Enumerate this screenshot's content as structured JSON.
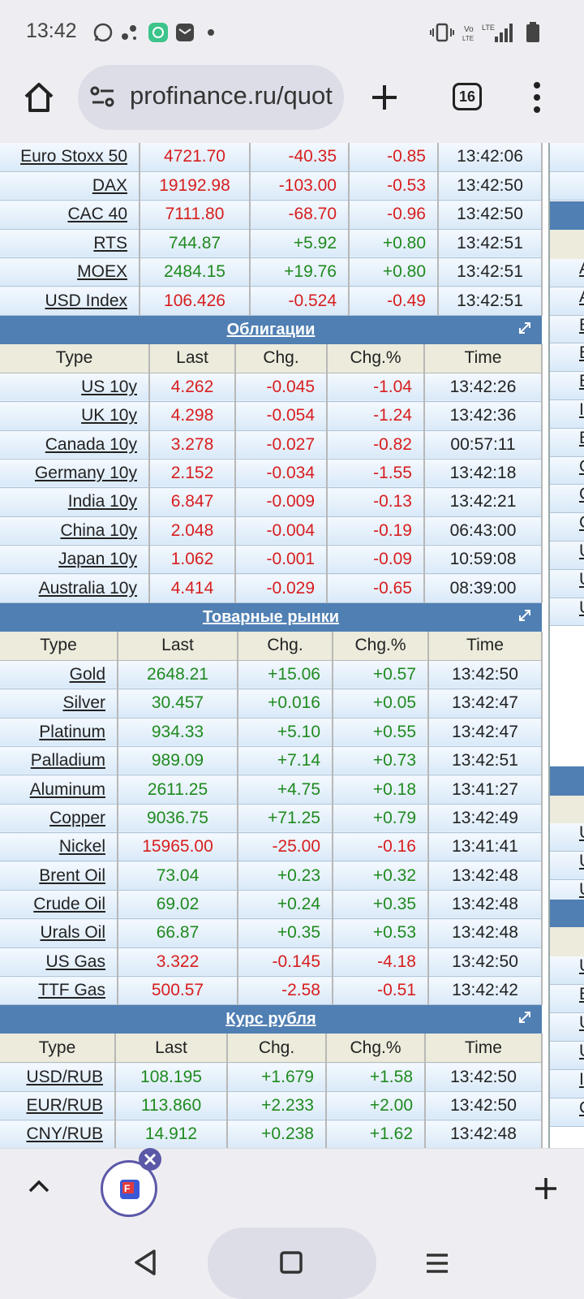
{
  "status_bar": {
    "time": "13:42"
  },
  "browser": {
    "url": "profinance.ru/quotes",
    "tab_count": "16"
  },
  "indices": {
    "rows": [
      {
        "name": "Euro Stoxx 50",
        "last": "4721.70",
        "chg": "-40.35",
        "pct": "-0.85",
        "time": "13:42:06",
        "dir": "down"
      },
      {
        "name": "DAX",
        "last": "19192.98",
        "chg": "-103.00",
        "pct": "-0.53",
        "time": "13:42:50",
        "dir": "down"
      },
      {
        "name": "CAC 40",
        "last": "7111.80",
        "chg": "-68.70",
        "pct": "-0.96",
        "time": "13:42:50",
        "dir": "down"
      },
      {
        "name": "RTS",
        "last": "744.87",
        "chg": "+5.92",
        "pct": "+0.80",
        "time": "13:42:51",
        "dir": "up"
      },
      {
        "name": "MOEX",
        "last": "2484.15",
        "chg": "+19.76",
        "pct": "+0.80",
        "time": "13:42:51",
        "dir": "up"
      },
      {
        "name": "USD Index",
        "last": "106.426",
        "chg": "-0.524",
        "pct": "-0.49",
        "time": "13:42:51",
        "dir": "down"
      }
    ]
  },
  "bonds": {
    "title": "Облигации",
    "headers": [
      "Type",
      "Last",
      "Chg.",
      "Chg.%",
      "Time"
    ],
    "rows": [
      {
        "name": "US 10y",
        "last": "4.262",
        "chg": "-0.045",
        "pct": "-1.04",
        "time": "13:42:26",
        "dir": "down"
      },
      {
        "name": "UK 10y",
        "last": "4.298",
        "chg": "-0.054",
        "pct": "-1.24",
        "time": "13:42:36",
        "dir": "down"
      },
      {
        "name": "Canada 10y",
        "last": "3.278",
        "chg": "-0.027",
        "pct": "-0.82",
        "time": "00:57:11",
        "dir": "down"
      },
      {
        "name": "Germany 10y",
        "last": "2.152",
        "chg": "-0.034",
        "pct": "-1.55",
        "time": "13:42:18",
        "dir": "down"
      },
      {
        "name": "India 10y",
        "last": "6.847",
        "chg": "-0.009",
        "pct": "-0.13",
        "time": "13:42:21",
        "dir": "down"
      },
      {
        "name": "China 10y",
        "last": "2.048",
        "chg": "-0.004",
        "pct": "-0.19",
        "time": "06:43:00",
        "dir": "down"
      },
      {
        "name": "Japan 10y",
        "last": "1.062",
        "chg": "-0.001",
        "pct": "-0.09",
        "time": "10:59:08",
        "dir": "down"
      },
      {
        "name": "Australia 10y",
        "last": "4.414",
        "chg": "-0.029",
        "pct": "-0.65",
        "time": "08:39:00",
        "dir": "down"
      }
    ]
  },
  "commodities": {
    "title": "Товарные рынки",
    "headers": [
      "Type",
      "Last",
      "Chg.",
      "Chg.%",
      "Time"
    ],
    "rows": [
      {
        "name": "Gold",
        "last": "2648.21",
        "chg": "+15.06",
        "pct": "+0.57",
        "time": "13:42:50",
        "dir": "up"
      },
      {
        "name": "Silver",
        "last": "30.457",
        "chg": "+0.016",
        "pct": "+0.05",
        "time": "13:42:47",
        "dir": "up"
      },
      {
        "name": "Platinum",
        "last": "934.33",
        "chg": "+5.10",
        "pct": "+0.55",
        "time": "13:42:47",
        "dir": "up"
      },
      {
        "name": "Palladium",
        "last": "989.09",
        "chg": "+7.14",
        "pct": "+0.73",
        "time": "13:42:51",
        "dir": "up"
      },
      {
        "name": "Aluminum",
        "last": "2611.25",
        "chg": "+4.75",
        "pct": "+0.18",
        "time": "13:41:27",
        "dir": "up"
      },
      {
        "name": "Copper",
        "last": "9036.75",
        "chg": "+71.25",
        "pct": "+0.79",
        "time": "13:42:49",
        "dir": "up"
      },
      {
        "name": "Nickel",
        "last": "15965.00",
        "chg": "-25.00",
        "pct": "-0.16",
        "time": "13:41:41",
        "dir": "down"
      },
      {
        "name": "Brent Oil",
        "last": "73.04",
        "chg": "+0.23",
        "pct": "+0.32",
        "time": "13:42:48",
        "dir": "up"
      },
      {
        "name": "Crude Oil",
        "last": "69.02",
        "chg": "+0.24",
        "pct": "+0.35",
        "time": "13:42:48",
        "dir": "up"
      },
      {
        "name": "Urals Oil",
        "last": "66.87",
        "chg": "+0.35",
        "pct": "+0.53",
        "time": "13:42:48",
        "dir": "up"
      },
      {
        "name": "US Gas",
        "last": "3.322",
        "chg": "-0.145",
        "pct": "-4.18",
        "time": "13:42:50",
        "dir": "down"
      },
      {
        "name": "TTF Gas",
        "last": "500.57",
        "chg": "-2.58",
        "pct": "-0.51",
        "time": "13:42:42",
        "dir": "down"
      }
    ]
  },
  "ruble": {
    "title": "Курс рубля",
    "headers": [
      "Type",
      "Last",
      "Chg.",
      "Chg.%",
      "Time"
    ],
    "rows": [
      {
        "name": "USD/RUB",
        "last": "108.195",
        "chg": "+1.679",
        "pct": "+1.58",
        "time": "13:42:50",
        "dir": "up"
      },
      {
        "name": "EUR/RUB",
        "last": "113.860",
        "chg": "+2.233",
        "pct": "+2.00",
        "time": "13:42:50",
        "dir": "up"
      },
      {
        "name": "CNY/RUB",
        "last": "14.912",
        "chg": "+0.238",
        "pct": "+1.62",
        "time": "13:42:48",
        "dir": "up"
      }
    ]
  },
  "right_column_letters": [
    "A",
    "A",
    "E",
    "E",
    "E",
    "I",
    "E",
    "G",
    "C",
    "C",
    "U",
    "U",
    "U",
    "U",
    "U",
    "U",
    "U",
    "Ef",
    "U",
    "U",
    "I",
    "C",
    "C"
  ],
  "colors": {
    "up": "#1f8a1f",
    "down": "#d81e1e",
    "section": "#4f7fb3",
    "header": "#ecebdc"
  }
}
